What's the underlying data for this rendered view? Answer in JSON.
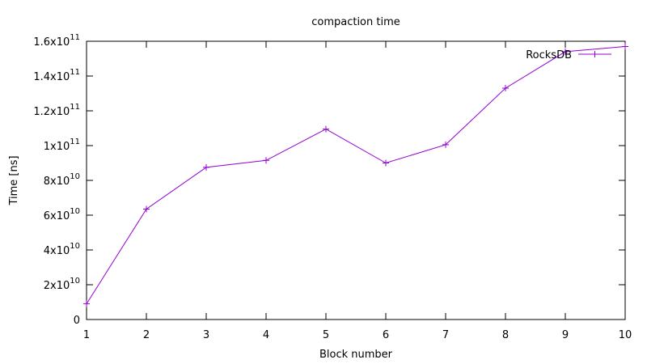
{
  "chart_data": {
    "type": "line",
    "title": "compaction time",
    "xlabel": "Block number",
    "ylabel": "Time [ns]",
    "xlim": [
      1,
      10
    ],
    "ylim": [
      0,
      160000000000
    ],
    "grid": false,
    "legend_position": "top-right",
    "x_ticks": [
      {
        "value": 1,
        "label": "1"
      },
      {
        "value": 2,
        "label": "2"
      },
      {
        "value": 3,
        "label": "3"
      },
      {
        "value": 4,
        "label": "4"
      },
      {
        "value": 5,
        "label": "5"
      },
      {
        "value": 6,
        "label": "6"
      },
      {
        "value": 7,
        "label": "7"
      },
      {
        "value": 8,
        "label": "8"
      },
      {
        "value": 9,
        "label": "9"
      },
      {
        "value": 10,
        "label": "10"
      }
    ],
    "y_ticks": [
      {
        "value": 0,
        "base": "0",
        "exp": ""
      },
      {
        "value": 20000000000,
        "base": "2x10",
        "exp": "10"
      },
      {
        "value": 40000000000,
        "base": "4x10",
        "exp": "10"
      },
      {
        "value": 60000000000,
        "base": "6x10",
        "exp": "10"
      },
      {
        "value": 80000000000,
        "base": "8x10",
        "exp": "10"
      },
      {
        "value": 100000000000,
        "base": "1x10",
        "exp": "11"
      },
      {
        "value": 120000000000,
        "base": "1.2x10",
        "exp": "11"
      },
      {
        "value": 140000000000,
        "base": "1.4x10",
        "exp": "11"
      },
      {
        "value": 160000000000,
        "base": "1.6x10",
        "exp": "11"
      }
    ],
    "series": [
      {
        "name": "RocksDB",
        "color": "#9400d3",
        "marker": "plus",
        "x": [
          1,
          2,
          3,
          4,
          5,
          6,
          7,
          8,
          9,
          10
        ],
        "y": [
          9000000000,
          63500000000,
          87500000000,
          91500000000,
          109500000000,
          90000000000,
          100500000000,
          133000000000,
          154000000000,
          157000000000
        ]
      }
    ]
  }
}
